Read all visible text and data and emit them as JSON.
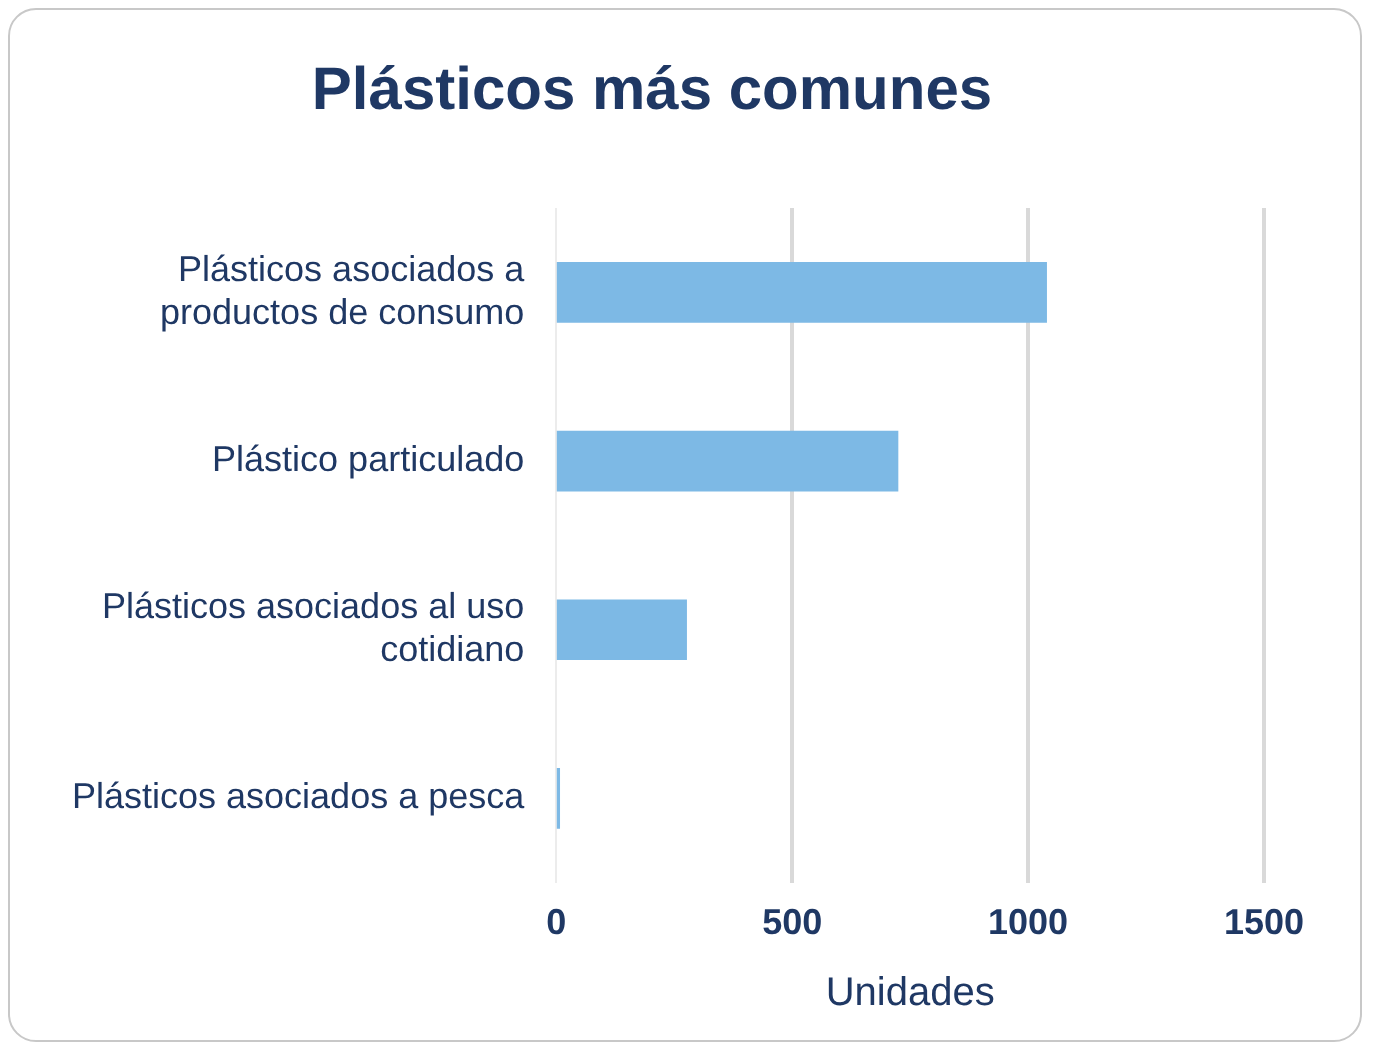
{
  "chart_data": {
    "type": "bar",
    "orientation": "horizontal",
    "title": "Plásticos más comunes",
    "xlabel": "Unidades",
    "categories": [
      "Plásticos asociados a productos de consumo",
      "Plástico particulado",
      "Plásticos asociados al uso cotidiano",
      "Plásticos asociados a pesca"
    ],
    "values": [
      1040,
      725,
      277,
      8
    ],
    "color": "#7db9e5",
    "xlim": [
      0,
      1500
    ],
    "xticks": [
      0,
      500,
      1000,
      1500
    ],
    "grid": "x",
    "legend": false
  }
}
